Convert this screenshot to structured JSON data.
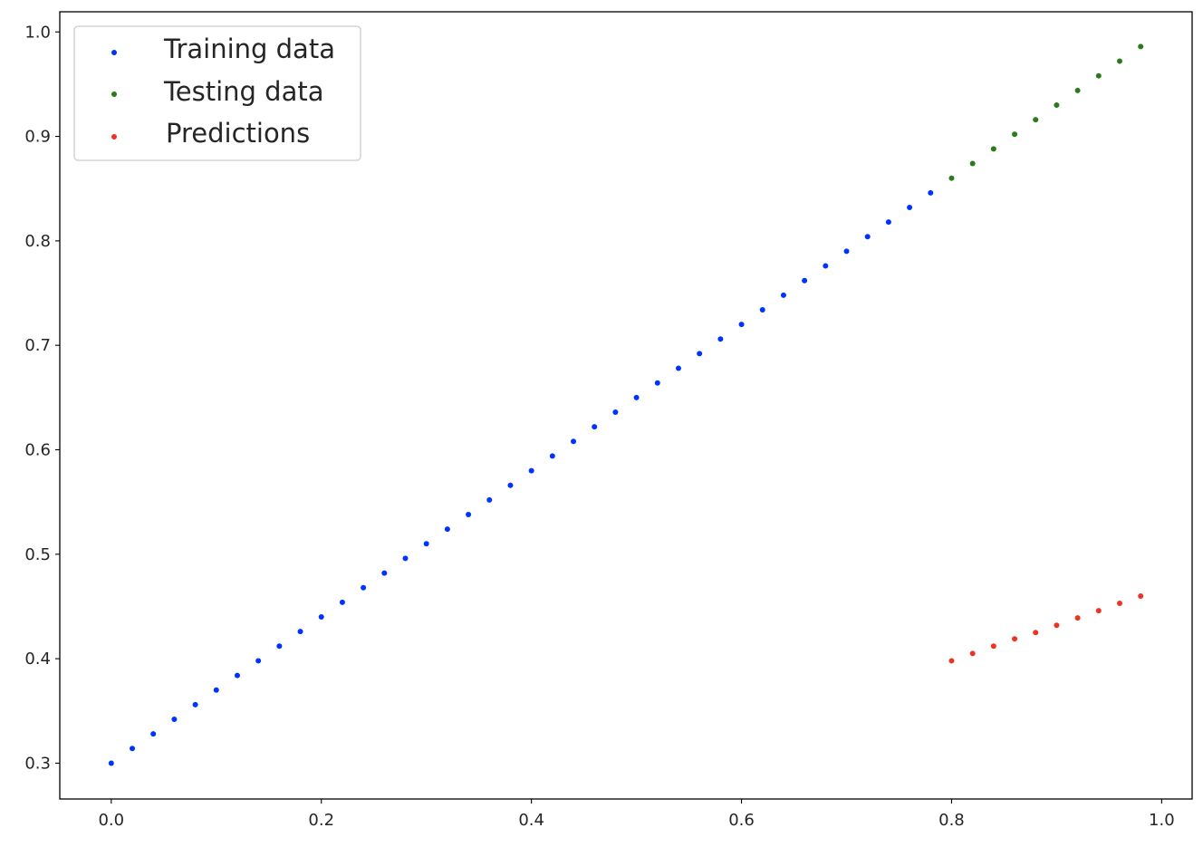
{
  "chart_data": {
    "type": "scatter",
    "xlim": [
      -0.049,
      1.029
    ],
    "ylim": [
      0.2657,
      1.0193
    ],
    "x_ticks": [
      "0.0",
      "0.2",
      "0.4",
      "0.6",
      "0.8",
      "1.0"
    ],
    "y_ticks": [
      "0.3",
      "0.4",
      "0.5",
      "0.6",
      "0.7",
      "0.8",
      "0.9",
      "1.0"
    ],
    "x_tick_values": [
      0.0,
      0.2,
      0.4,
      0.6,
      0.8,
      1.0
    ],
    "y_tick_values": [
      0.3,
      0.4,
      0.5,
      0.6,
      0.7,
      0.8,
      0.9,
      1.0
    ],
    "grid": false,
    "legend_placement": "top-left",
    "series": [
      {
        "name": "Training data",
        "color": "#0033ff",
        "x": [
          0.0,
          0.02,
          0.04,
          0.06,
          0.08,
          0.1,
          0.12,
          0.14,
          0.16,
          0.18,
          0.2,
          0.22,
          0.24,
          0.26,
          0.28,
          0.3,
          0.32,
          0.34,
          0.36,
          0.38,
          0.4,
          0.42,
          0.44,
          0.46,
          0.48,
          0.5,
          0.52,
          0.54,
          0.56,
          0.58,
          0.6,
          0.62,
          0.64,
          0.66,
          0.68,
          0.7,
          0.72,
          0.74,
          0.76,
          0.78
        ],
        "y": [
          0.3,
          0.314,
          0.328,
          0.342,
          0.356,
          0.37,
          0.384,
          0.398,
          0.412,
          0.426,
          0.44,
          0.454,
          0.468,
          0.482,
          0.496,
          0.51,
          0.524,
          0.538,
          0.552,
          0.566,
          0.58,
          0.594,
          0.608,
          0.622,
          0.636,
          0.65,
          0.664,
          0.678,
          0.692,
          0.706,
          0.72,
          0.734,
          0.748,
          0.762,
          0.776,
          0.79,
          0.804,
          0.818,
          0.832,
          0.846
        ]
      },
      {
        "name": "Testing data",
        "color": "#2b7a1b",
        "x": [
          0.8,
          0.82,
          0.84,
          0.86,
          0.88,
          0.9,
          0.92,
          0.94,
          0.96,
          0.98
        ],
        "y": [
          0.86,
          0.874,
          0.888,
          0.902,
          0.916,
          0.93,
          0.944,
          0.958,
          0.972,
          0.986
        ]
      },
      {
        "name": "Predictions",
        "color": "#ee3322",
        "x": [
          0.8,
          0.82,
          0.84,
          0.86,
          0.88,
          0.9,
          0.92,
          0.94,
          0.96,
          0.98
        ],
        "y": [
          0.398,
          0.405,
          0.412,
          0.419,
          0.425,
          0.432,
          0.439,
          0.446,
          0.453,
          0.46
        ]
      }
    ]
  }
}
